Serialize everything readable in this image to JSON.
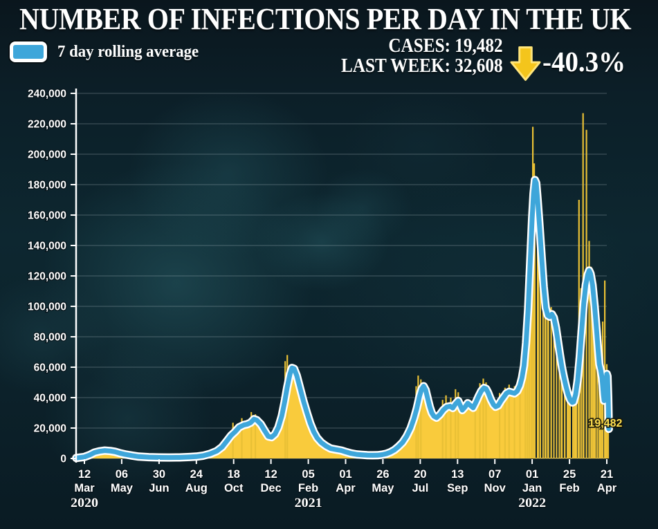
{
  "title": "NUMBER OF INFECTIONS PER DAY IN THE UK",
  "legend": {
    "label": "7 day rolling average",
    "swatch_color": "#3ea6da"
  },
  "stats": {
    "cases_label": "CASES:",
    "cases_value": "19,482",
    "last_week_label": "LAST WEEK:",
    "last_week_value": "32,608",
    "change_percent": "-40.3%",
    "direction_icon": "down-arrow"
  },
  "colors": {
    "background": "#0c2029",
    "area_yellow": "#f9cb3c",
    "spike_yellow": "#e9c035",
    "line_blue": "#3ea6da",
    "line_casing": "#ffffff",
    "grid": "rgba(195,208,214,0.32)",
    "axis": "#ffffff",
    "arrow_gold": "#f4c51c",
    "arrow_edge": "#ffe57a",
    "end_label_gold": "#ffdf4f",
    "pinstripe": "#0c1f28"
  },
  "chart_data": {
    "type": "area+line",
    "title": "NUMBER OF INFECTIONS PER DAY IN THE UK",
    "x_unit": "days since 12 Mar 2020",
    "ylim": [
      0,
      240000
    ],
    "ytick_step": 20000,
    "ytick_labels": [
      "0",
      "20,000",
      "40,000",
      "60,000",
      "80,000",
      "100,000",
      "120,000",
      "140,000",
      "160,000",
      "180,000",
      "200,000",
      "220,000",
      "240,000"
    ],
    "grid": true,
    "legend_position": "top-left",
    "x_ticks": [
      {
        "day": 0,
        "top": "12",
        "month": "Mar",
        "year": "2020"
      },
      {
        "day": 55,
        "top": "06",
        "month": "May"
      },
      {
        "day": 110,
        "top": "30",
        "month": "Jun"
      },
      {
        "day": 165,
        "top": "24",
        "month": "Aug"
      },
      {
        "day": 220,
        "top": "18",
        "month": "Oct"
      },
      {
        "day": 275,
        "top": "12",
        "month": "Dec"
      },
      {
        "day": 330,
        "top": "05",
        "month": "Feb",
        "year": "2021"
      },
      {
        "day": 385,
        "top": "01",
        "month": "Apr"
      },
      {
        "day": 440,
        "top": "26",
        "month": "May"
      },
      {
        "day": 495,
        "top": "20",
        "month": "Jul"
      },
      {
        "day": 550,
        "top": "13",
        "month": "Sep"
      },
      {
        "day": 605,
        "top": "07",
        "month": "Nov"
      },
      {
        "day": 660,
        "top": "01",
        "month": "Jan",
        "year": "2022"
      },
      {
        "day": 715,
        "top": "25",
        "month": "Feb"
      },
      {
        "day": 770,
        "top": "21",
        "month": "Apr"
      }
    ],
    "series": [
      {
        "name": "7 day rolling average",
        "type": "line",
        "color": "#3ea6da",
        "points": [
          [
            -12,
            300
          ],
          [
            0,
            1000
          ],
          [
            8,
            2300
          ],
          [
            15,
            3900
          ],
          [
            22,
            4700
          ],
          [
            30,
            5200
          ],
          [
            38,
            4900
          ],
          [
            45,
            4400
          ],
          [
            52,
            3500
          ],
          [
            60,
            2700
          ],
          [
            70,
            1900
          ],
          [
            80,
            1250
          ],
          [
            95,
            850
          ],
          [
            110,
            700
          ],
          [
            125,
            650
          ],
          [
            140,
            700
          ],
          [
            155,
            950
          ],
          [
            165,
            1250
          ],
          [
            175,
            1800
          ],
          [
            185,
            3000
          ],
          [
            195,
            4800
          ],
          [
            203,
            7500
          ],
          [
            210,
            11500
          ],
          [
            216,
            15000
          ],
          [
            222,
            17500
          ],
          [
            228,
            20500
          ],
          [
            235,
            22000
          ],
          [
            240,
            22500
          ],
          [
            245,
            23500
          ],
          [
            250,
            25800
          ],
          [
            254,
            25200
          ],
          [
            260,
            22500
          ],
          [
            266,
            18000
          ],
          [
            271,
            14500
          ],
          [
            276,
            14000
          ],
          [
            281,
            16000
          ],
          [
            286,
            20500
          ],
          [
            291,
            28000
          ],
          [
            295,
            37000
          ],
          [
            299,
            47000
          ],
          [
            303,
            55500
          ],
          [
            306,
            59500
          ],
          [
            309,
            59000
          ],
          [
            313,
            54500
          ],
          [
            318,
            46000
          ],
          [
            323,
            37500
          ],
          [
            328,
            30000
          ],
          [
            333,
            23000
          ],
          [
            338,
            17500
          ],
          [
            343,
            13500
          ],
          [
            349,
            10500
          ],
          [
            356,
            8200
          ],
          [
            363,
            6500
          ],
          [
            371,
            5800
          ],
          [
            379,
            5200
          ],
          [
            386,
            4200
          ],
          [
            393,
            3300
          ],
          [
            401,
            2700
          ],
          [
            409,
            2400
          ],
          [
            417,
            2200
          ],
          [
            425,
            2100
          ],
          [
            432,
            2150
          ],
          [
            439,
            2500
          ],
          [
            445,
            3100
          ],
          [
            451,
            4100
          ],
          [
            457,
            5600
          ],
          [
            463,
            7800
          ],
          [
            469,
            10500
          ],
          [
            475,
            14500
          ],
          [
            481,
            20000
          ],
          [
            486,
            26500
          ],
          [
            490,
            33000
          ],
          [
            494,
            41000
          ],
          [
            497,
            45500
          ],
          [
            500,
            47500
          ],
          [
            503,
            45000
          ],
          [
            506,
            39500
          ],
          [
            509,
            34000
          ],
          [
            512,
            30000
          ],
          [
            515,
            27800
          ],
          [
            519,
            26800
          ],
          [
            524,
            28800
          ],
          [
            529,
            31800
          ],
          [
            534,
            33800
          ],
          [
            539,
            34300
          ],
          [
            543,
            33200
          ],
          [
            547,
            35800
          ],
          [
            551,
            37800
          ],
          [
            554,
            34800
          ],
          [
            557,
            31800
          ],
          [
            561,
            33800
          ],
          [
            565,
            36300
          ],
          [
            569,
            34800
          ],
          [
            573,
            33300
          ],
          [
            577,
            36800
          ],
          [
            581,
            40800
          ],
          [
            585,
            44300
          ],
          [
            589,
            46300
          ],
          [
            592,
            45800
          ],
          [
            595,
            43300
          ],
          [
            599,
            38800
          ],
          [
            603,
            35300
          ],
          [
            606,
            34000
          ],
          [
            610,
            34800
          ],
          [
            614,
            37800
          ],
          [
            618,
            40300
          ],
          [
            622,
            42800
          ],
          [
            626,
            43800
          ],
          [
            630,
            43300
          ],
          [
            634,
            42800
          ],
          [
            638,
            44300
          ],
          [
            642,
            48000
          ],
          [
            645,
            53000
          ],
          [
            648,
            61000
          ],
          [
            651,
            76000
          ],
          [
            654,
            98000
          ],
          [
            657,
            128000
          ],
          [
            660,
            158000
          ],
          [
            662,
            174000
          ],
          [
            664,
            183000
          ],
          [
            666,
            181000
          ],
          [
            668,
            170000
          ],
          [
            671,
            152000
          ],
          [
            674,
            132000
          ],
          [
            677,
            113000
          ],
          [
            680,
            99000
          ],
          [
            683,
            94000
          ],
          [
            686,
            93200
          ],
          [
            689,
            94800
          ],
          [
            692,
            92500
          ],
          [
            695,
            86000
          ],
          [
            698,
            77000
          ],
          [
            701,
            68000
          ],
          [
            704,
            59500
          ],
          [
            707,
            53000
          ],
          [
            710,
            47000
          ],
          [
            713,
            42000
          ],
          [
            716,
            38500
          ],
          [
            719,
            36800
          ],
          [
            721,
            37200
          ],
          [
            724,
            42000
          ],
          [
            727,
            51000
          ],
          [
            730,
            66000
          ],
          [
            733,
            84000
          ],
          [
            736,
            102000
          ],
          [
            739,
            114000
          ],
          [
            742,
            121000
          ],
          [
            744,
            123500
          ],
          [
            746,
            121500
          ],
          [
            749,
            114000
          ],
          [
            752,
            100000
          ],
          [
            755,
            84000
          ],
          [
            757,
            72000
          ],
          [
            759,
            62000
          ],
          [
            761,
            58000
          ],
          [
            763,
            53000
          ],
          [
            765,
            42000
          ],
          [
            766,
            38000
          ],
          [
            768,
            46000
          ],
          [
            770,
            55500
          ],
          [
            771,
            54000
          ],
          [
            772,
            40000
          ],
          [
            773,
            19482
          ]
        ]
      },
      {
        "name": "daily cases",
        "type": "area",
        "color": "#f9cb3c",
        "note": "yellow area top follows the 7-day average; spikes mark individual high days",
        "spikes": [
          [
            219,
            23500
          ],
          [
            232,
            26500
          ],
          [
            246,
            30500
          ],
          [
            252,
            29000
          ],
          [
            296,
            64000
          ],
          [
            299,
            68000
          ],
          [
            489,
            47500
          ],
          [
            492,
            54500
          ],
          [
            496,
            52000
          ],
          [
            528,
            38500
          ],
          [
            533,
            41500
          ],
          [
            540,
            40000
          ],
          [
            547,
            45500
          ],
          [
            551,
            43500
          ],
          [
            576,
            41000
          ],
          [
            583,
            49500
          ],
          [
            588,
            52500
          ],
          [
            592,
            50000
          ],
          [
            612,
            43000
          ],
          [
            620,
            46500
          ],
          [
            626,
            48500
          ],
          [
            634,
            47500
          ],
          [
            642,
            52500
          ],
          [
            650,
            106000
          ],
          [
            653,
            122000
          ],
          [
            656,
            148000
          ],
          [
            659,
            183000
          ],
          [
            661,
            218000
          ],
          [
            663,
            194000
          ],
          [
            669,
            162000
          ],
          [
            672,
            143000
          ],
          [
            679,
            106000
          ],
          [
            683,
            103000
          ],
          [
            688,
            99500
          ],
          [
            703,
            68000
          ],
          [
            708,
            58000
          ],
          [
            714,
            48000
          ],
          [
            722,
            52000
          ],
          [
            725,
            66000
          ],
          [
            728,
            84000
          ],
          [
            729,
            170000
          ],
          [
            732,
            112000
          ],
          [
            735,
            227000
          ],
          [
            740,
            216000
          ],
          [
            744,
            143000
          ],
          [
            747,
            126000
          ],
          [
            750,
            110000
          ],
          [
            753,
            95000
          ],
          [
            756,
            86000
          ],
          [
            759,
            70000
          ],
          [
            762,
            60000
          ],
          [
            764,
            90000
          ],
          [
            767,
            117000
          ],
          [
            770,
            62000
          ],
          [
            772,
            56000
          ]
        ]
      }
    ],
    "pinstripes": {
      "start_day": 662,
      "end_day": 774,
      "step_days": 4
    },
    "end_label": {
      "text": "19,482",
      "day": 773,
      "value": 19482
    }
  }
}
